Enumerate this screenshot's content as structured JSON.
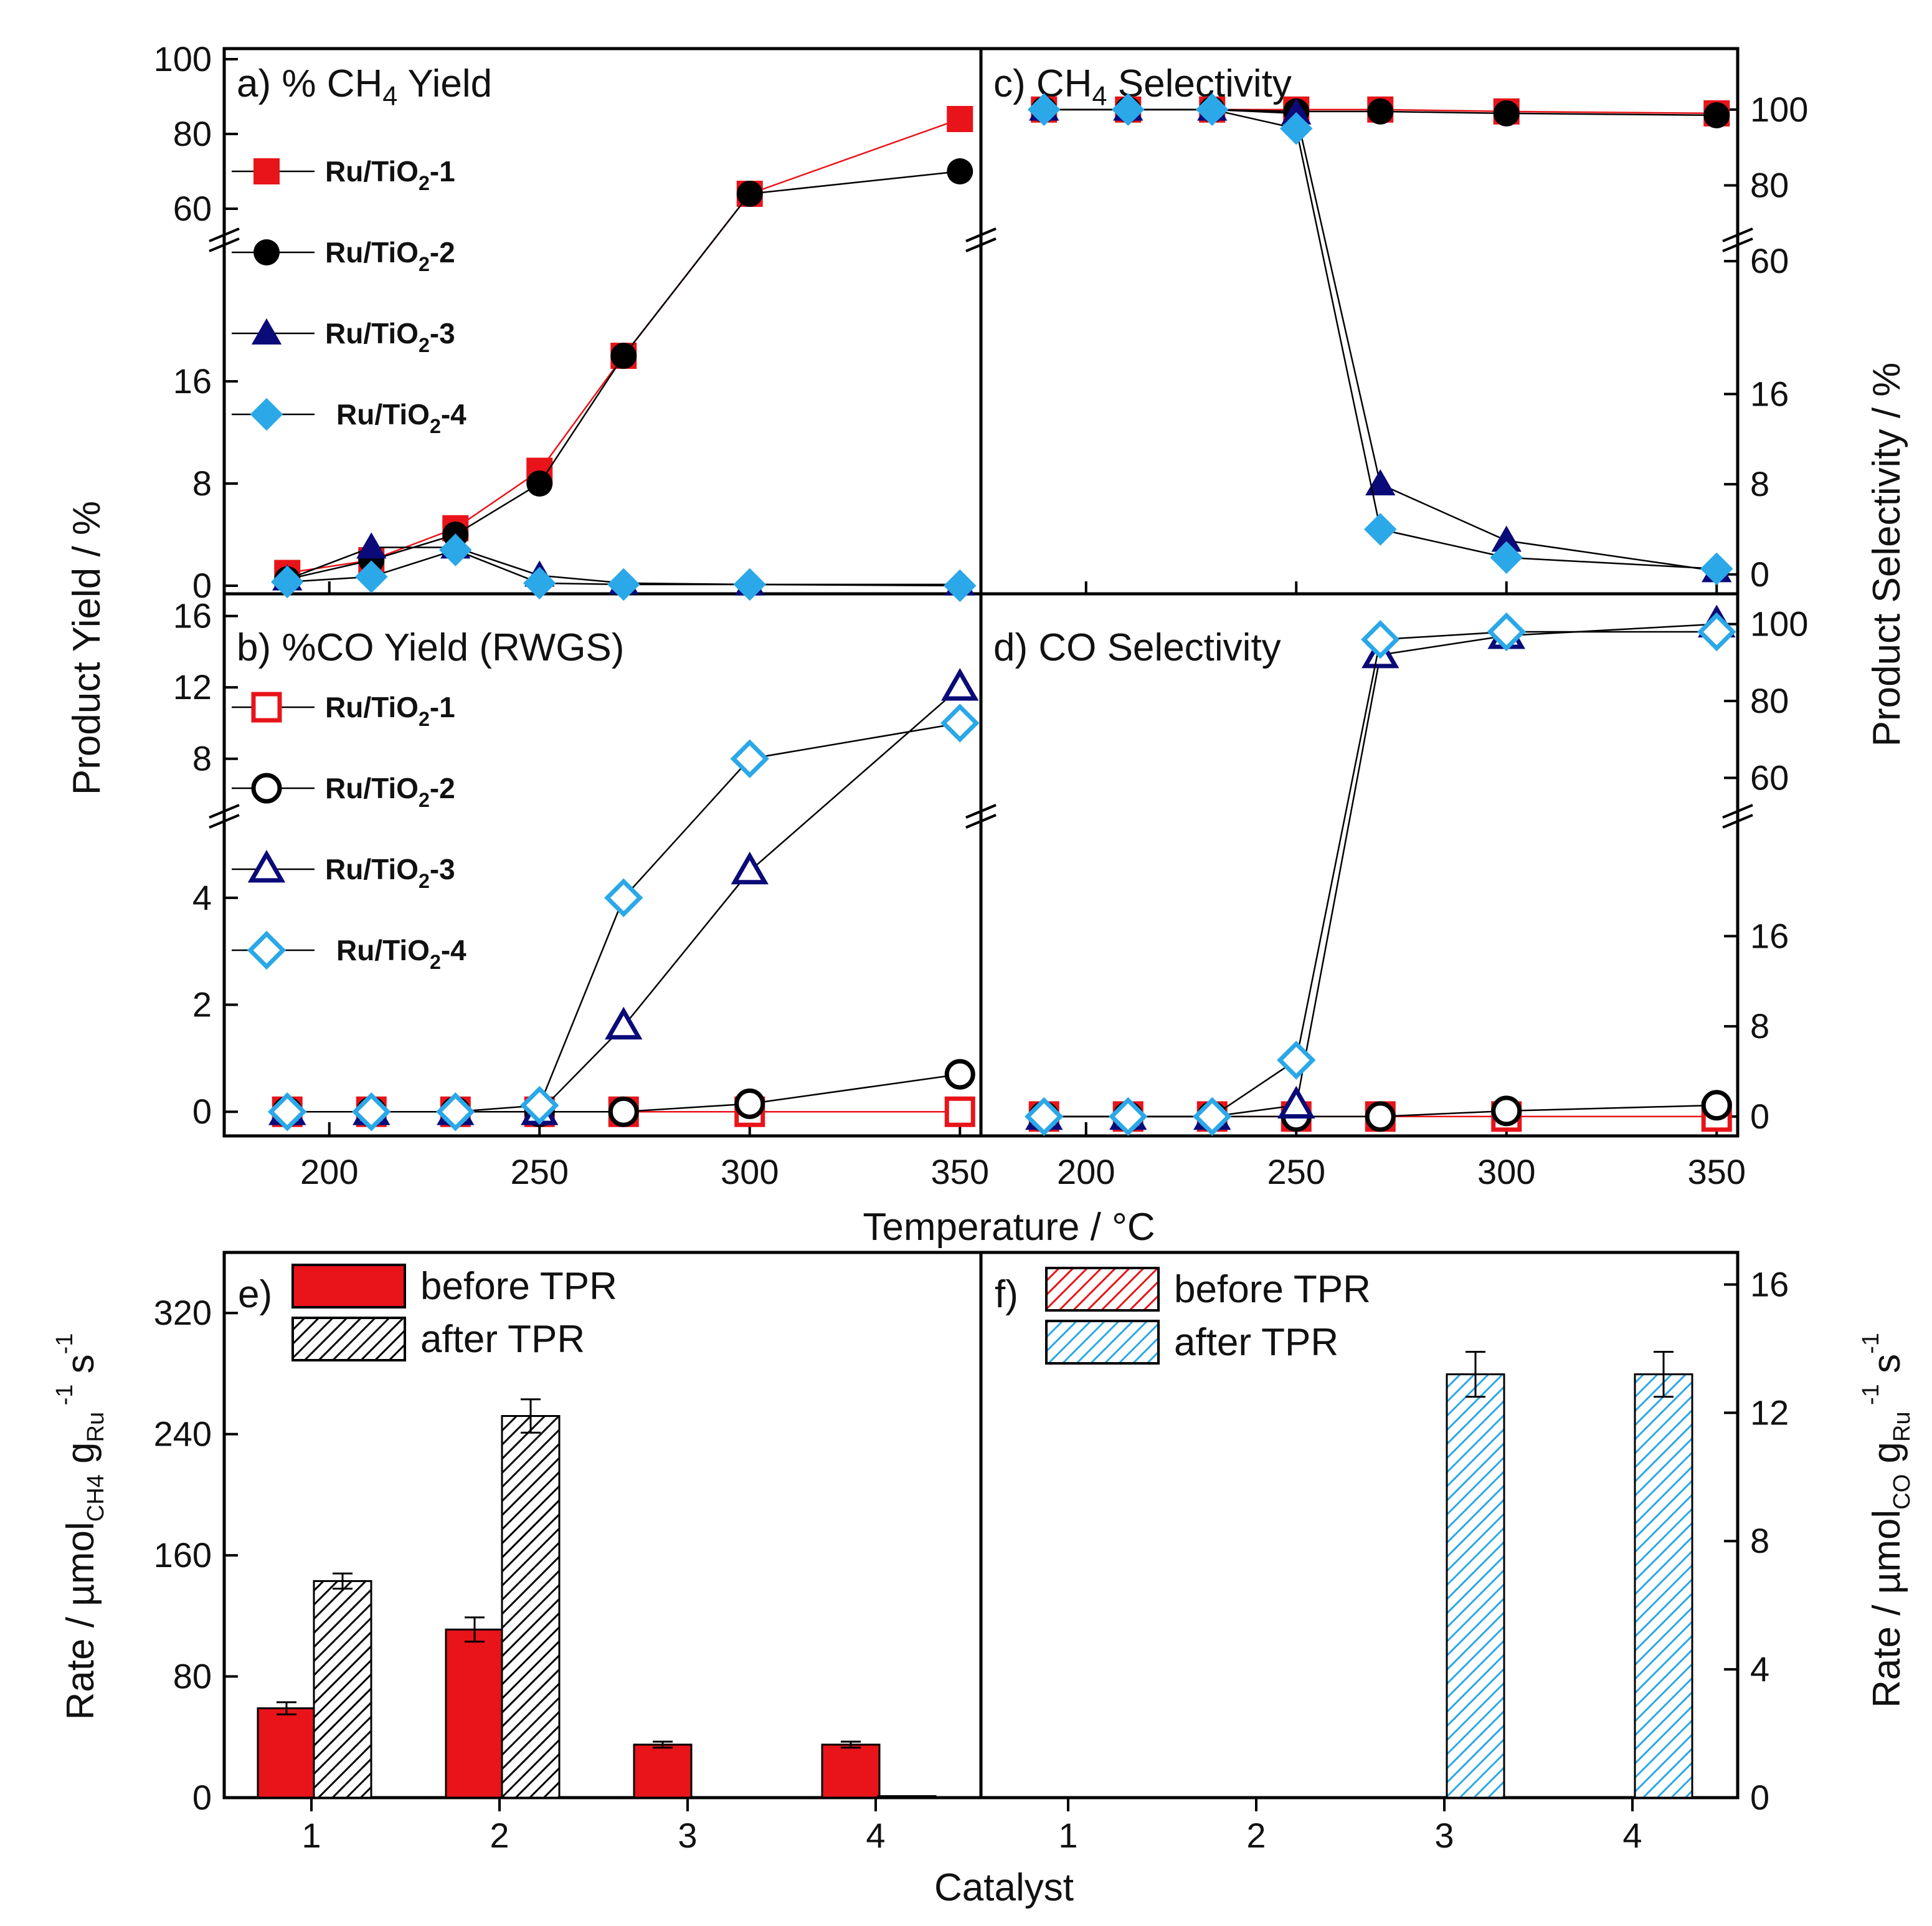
{
  "figure": {
    "x_axis_title": "Temperature / °C",
    "left_y_title": "Product Yield / %",
    "right_y_title": "Product Selectivity / %",
    "bottom_x_title": "Catalyst",
    "bottom_left_y_title": "Rate / µmol CH4 gRu -1 s-1",
    "bottom_right_y_title": "Rate / µmol CO gRu -1 s-1"
  },
  "colors": {
    "red": "#e8141a",
    "black": "#000000",
    "navy": "#0a0a78",
    "lightblue": "#2aa8e8"
  },
  "series_names": [
    "Ru/TiO2-1",
    "Ru/TiO2-2",
    "Ru/TiO2-3",
    "Ru/TiO2-4"
  ],
  "chart_data": [
    {
      "id": "a",
      "type": "line",
      "title": "a) % CH4 Yield",
      "xlabel": "Temperature / °C",
      "ylabel": "Product Yield / %",
      "x": [
        190,
        210,
        230,
        250,
        270,
        300,
        350
      ],
      "y_lower_range": [
        0,
        20
      ],
      "y_upper_range": [
        50,
        100
      ],
      "y_lower_ticks": [
        0,
        8,
        16
      ],
      "y_upper_ticks": [
        60,
        80,
        100
      ],
      "x_ticks": [
        200,
        250,
        300,
        350
      ],
      "marker": "filled",
      "series": [
        {
          "name": "Ru/TiO2-1",
          "values": [
            1,
            2,
            4.5,
            9,
            18,
            64,
            84
          ]
        },
        {
          "name": "Ru/TiO2-2",
          "values": [
            0.5,
            2,
            4,
            8,
            18,
            64,
            70
          ]
        },
        {
          "name": "Ru/TiO2-3",
          "values": [
            0.5,
            3,
            3,
            0.8,
            0.2,
            0.1,
            0.1
          ]
        },
        {
          "name": "Ru/TiO2-4",
          "values": [
            0.3,
            0.7,
            2.8,
            0.2,
            0.1,
            0.1,
            0
          ]
        }
      ]
    },
    {
      "id": "b",
      "type": "line",
      "title": "b) %CO Yield (RWGS)",
      "xlabel": "Temperature / °C",
      "ylabel": "Product Yield / %",
      "x": [
        190,
        210,
        230,
        250,
        270,
        300,
        350
      ],
      "y_lower_range": [
        -0.3,
        5
      ],
      "y_upper_range": [
        6,
        17
      ],
      "y_lower_ticks": [
        0,
        2,
        4
      ],
      "y_upper_ticks": [
        8,
        12,
        16
      ],
      "x_ticks": [
        200,
        250,
        300,
        350
      ],
      "marker": "open",
      "series": [
        {
          "name": "Ru/TiO2-1",
          "values": [
            0,
            0,
            0,
            0,
            0,
            0,
            0
          ]
        },
        {
          "name": "Ru/TiO2-2",
          "values": [
            0,
            0,
            0,
            0,
            0,
            0.15,
            0.7
          ]
        },
        {
          "name": "Ru/TiO2-3",
          "values": [
            0,
            0,
            0,
            0,
            1.6,
            4.5,
            12
          ]
        },
        {
          "name": "Ru/TiO2-4",
          "values": [
            0,
            0,
            0,
            0.12,
            4,
            8,
            10
          ]
        }
      ]
    },
    {
      "id": "c",
      "type": "line",
      "title": "c) CH4 Selectivity",
      "xlabel": "Temperature / °C",
      "ylabel": "Product Selectivity / %",
      "x": [
        190,
        210,
        230,
        250,
        270,
        300,
        350
      ],
      "y_lower_range": [
        -1,
        20
      ],
      "y_upper_range": [
        50,
        110
      ],
      "y_lower_ticks": [
        0,
        8,
        16
      ],
      "y_upper_ticks": [
        60,
        80,
        100
      ],
      "x_ticks": [
        200,
        250,
        300,
        350
      ],
      "marker": "filled",
      "series": [
        {
          "name": "Ru/TiO2-1",
          "values": [
            100,
            100,
            100,
            100,
            100,
            99.5,
            99
          ]
        },
        {
          "name": "Ru/TiO2-2",
          "values": [
            100,
            100,
            100,
            99.5,
            99.5,
            99,
            98.5
          ]
        },
        {
          "name": "Ru/TiO2-3",
          "values": [
            100,
            100,
            100,
            99,
            8,
            3,
            0.3
          ]
        },
        {
          "name": "Ru/TiO2-4",
          "values": [
            100,
            100,
            100,
            95,
            4,
            1.5,
            0.5
          ]
        }
      ]
    },
    {
      "id": "d",
      "type": "line",
      "title": "d) CO Selectivity",
      "xlabel": "Temperature / °C",
      "ylabel": "Product Selectivity / %",
      "x": [
        190,
        210,
        230,
        250,
        270,
        300,
        350
      ],
      "y_lower_range": [
        -1,
        20
      ],
      "y_upper_range": [
        50,
        110
      ],
      "y_lower_ticks": [
        0,
        8,
        16
      ],
      "y_upper_ticks": [
        60,
        80,
        100
      ],
      "x_ticks": [
        200,
        250,
        300,
        350
      ],
      "marker": "open",
      "series": [
        {
          "name": "Ru/TiO2-1",
          "values": [
            0,
            0,
            0,
            0,
            0,
            0,
            0
          ]
        },
        {
          "name": "Ru/TiO2-2",
          "values": [
            0,
            0,
            0,
            0,
            0,
            0.5,
            1
          ]
        },
        {
          "name": "Ru/TiO2-3",
          "values": [
            0,
            0,
            0,
            1,
            92,
            97,
            100
          ]
        },
        {
          "name": "Ru/TiO2-4",
          "values": [
            0,
            0,
            0,
            5,
            96,
            98,
            98
          ]
        }
      ]
    },
    {
      "id": "e",
      "type": "bar",
      "title": "e)",
      "xlabel": "Catalyst",
      "ylabel": "Rate / µmol CH4 gRu -1 s-1",
      "categories": [
        "1",
        "2",
        "3",
        "4"
      ],
      "ylim": [
        0,
        360
      ],
      "y_ticks": [
        0,
        80,
        160,
        240,
        320
      ],
      "series": [
        {
          "name": "before TPR",
          "values": [
            59,
            111,
            35,
            35
          ],
          "errors": [
            4,
            8,
            2,
            2
          ]
        },
        {
          "name": "after  TPR",
          "values": [
            143,
            252,
            0,
            1
          ],
          "errors": [
            5,
            11,
            0,
            0
          ]
        }
      ]
    },
    {
      "id": "f",
      "type": "bar",
      "title": "f)",
      "xlabel": "Catalyst",
      "ylabel": "Rate / µmol CO gRu -1 s-1",
      "categories": [
        "1",
        "2",
        "3",
        "4"
      ],
      "ylim": [
        0,
        17
      ],
      "y_ticks": [
        0,
        4,
        8,
        12,
        16
      ],
      "series": [
        {
          "name": "before TPR",
          "values": [
            0,
            0,
            0,
            0
          ],
          "errors": [
            0,
            0,
            0,
            0
          ]
        },
        {
          "name": "after TPR",
          "values": [
            0,
            0,
            13.2,
            13.2
          ],
          "errors": [
            0,
            0,
            0.7,
            0.7
          ]
        }
      ]
    }
  ]
}
